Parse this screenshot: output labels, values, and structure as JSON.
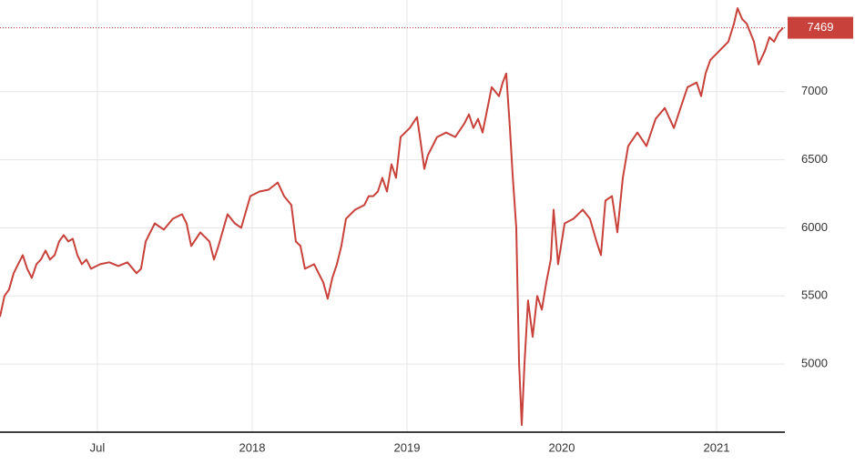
{
  "chart_data": {
    "type": "line",
    "x": [
      2016.371,
      2016.4,
      2016.429,
      2016.459,
      2016.488,
      2016.518,
      2016.547,
      2016.576,
      2016.606,
      2016.635,
      2016.665,
      2016.694,
      2016.724,
      2016.753,
      2016.782,
      2016.812,
      2016.841,
      2016.871,
      2016.9,
      2016.929,
      2016.959,
      2017.018,
      2017.076,
      2017.135,
      2017.194,
      2017.253,
      2017.282,
      2017.312,
      2017.371,
      2017.429,
      2017.488,
      2017.547,
      2017.576,
      2017.606,
      2017.665,
      2017.724,
      2017.753,
      2017.782,
      2017.841,
      2017.888,
      2017.929,
      2017.988,
      2018.047,
      2018.106,
      2018.165,
      2018.206,
      2018.253,
      2018.282,
      2018.312,
      2018.341,
      2018.4,
      2018.429,
      2018.459,
      2018.488,
      2018.518,
      2018.547,
      2018.576,
      2018.606,
      2018.665,
      2018.724,
      2018.753,
      2018.782,
      2018.812,
      2018.841,
      2018.871,
      2018.9,
      2018.929,
      2018.959,
      2019.018,
      2019.065,
      2019.088,
      2019.112,
      2019.135,
      2019.194,
      2019.253,
      2019.312,
      2019.371,
      2019.4,
      2019.429,
      2019.459,
      2019.488,
      2019.547,
      2019.594,
      2019.618,
      2019.641,
      2019.665,
      2019.682,
      2019.706,
      2019.724,
      2019.741,
      2019.759,
      2019.782,
      2019.812,
      2019.841,
      2019.871,
      2019.9,
      2019.929,
      2019.947,
      2019.976,
      2020.018,
      2020.076,
      2020.135,
      2020.182,
      2020.224,
      2020.253,
      2020.282,
      2020.324,
      2020.359,
      2020.394,
      2020.429,
      2020.488,
      2020.547,
      2020.606,
      2020.665,
      2020.724,
      2020.782,
      2020.812,
      2020.871,
      2020.9,
      2020.929,
      2020.959,
      2021.018,
      2021.076,
      2021.112,
      2021.135,
      2021.165,
      2021.194,
      2021.241,
      2021.271,
      2021.312,
      2021.341,
      2021.371,
      2021.4,
      2021.429
    ],
    "series": [
      {
        "color": "#c8413a",
        "values": [
          5347,
          5500,
          5547,
          5667,
          5733,
          5800,
          5700,
          5633,
          5733,
          5767,
          5833,
          5767,
          5800,
          5900,
          5947,
          5900,
          5920,
          5800,
          5733,
          5767,
          5700,
          5733,
          5747,
          5720,
          5747,
          5667,
          5700,
          5900,
          6033,
          5987,
          6067,
          6100,
          6033,
          5867,
          5967,
          5900,
          5767,
          5867,
          6100,
          6033,
          6000,
          6233,
          6267,
          6280,
          6333,
          6233,
          6167,
          5900,
          5867,
          5700,
          5733,
          5667,
          5600,
          5480,
          5633,
          5733,
          5867,
          6067,
          6133,
          6167,
          6233,
          6233,
          6267,
          6367,
          6267,
          6467,
          6367,
          6667,
          6733,
          6813,
          6633,
          6433,
          6533,
          6667,
          6700,
          6667,
          6767,
          6833,
          6733,
          6800,
          6700,
          7033,
          6967,
          7067,
          7133,
          6733,
          6400,
          6000,
          5000,
          4553,
          5000,
          5467,
          5200,
          5500,
          5400,
          5600,
          5767,
          6133,
          5733,
          6033,
          6067,
          6133,
          6067,
          5900,
          5800,
          6200,
          6233,
          5967,
          6367,
          6600,
          6700,
          6600,
          6800,
          6880,
          6733,
          6933,
          7033,
          7067,
          6967,
          7133,
          7233,
          7300,
          7367,
          7500,
          7613,
          7533,
          7500,
          7367,
          7200,
          7300,
          7400,
          7367,
          7433,
          7469
        ]
      }
    ],
    "xlim": [
      2016.371,
      2021.441
    ],
    "xticks": [
      {
        "value": 2017.0,
        "label": "Jul"
      },
      2018,
      2019,
      2020,
      2021
    ],
    "ylim": [
      4500,
      7673
    ],
    "yticks": [
      5000,
      5500,
      6000,
      6500,
      7000
    ],
    "grid": true
  }
}
